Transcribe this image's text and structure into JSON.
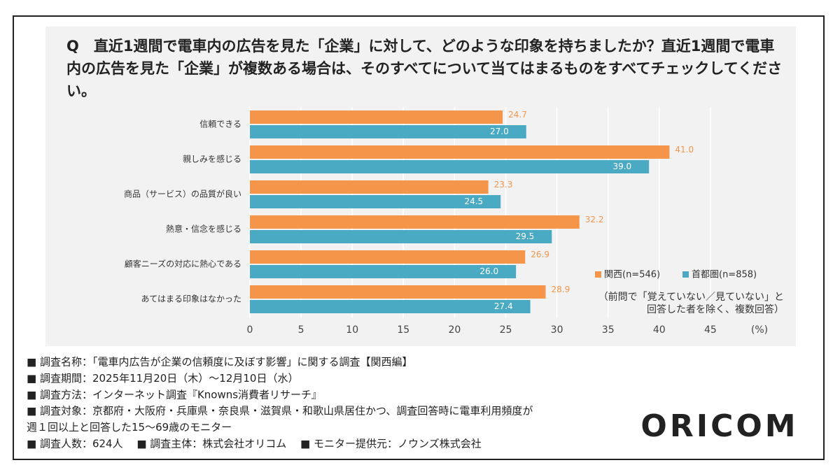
{
  "chart_data": {
    "type": "bar",
    "orientation": "horizontal",
    "title": "Q　直近1週間で電車内の広告を見た「企業」に対して、どのような印象を持ちましたか？直近1週間で電車内の広告を見た「企業」が複数ある場合は、そのすべてについて当てはまるものをすべてチェックしてください。",
    "categories": [
      "信頼できる",
      "親しみを感じる",
      "商品（サービス）の品質が良い",
      "熱意・信念を感じる",
      "顧客ニーズの対応に熱心である",
      "あてはまる印象はなかった"
    ],
    "series": [
      {
        "name": "関西(n=546)",
        "color": "#f5954a",
        "values": [
          24.7,
          41,
          23.3,
          32.2,
          26.9,
          28.9
        ],
        "value_labels": [
          "24.7",
          "41.0",
          "23.3",
          "32.2",
          "26.9",
          "28.9"
        ]
      },
      {
        "name": "首都圏(n=858)",
        "color": "#4aaac4",
        "values": [
          27,
          39,
          24.5,
          29.5,
          26,
          27.4
        ],
        "value_labels": [
          "27.0",
          "39.0",
          "24.5",
          "29.5",
          "26.0",
          "27.4"
        ]
      }
    ],
    "xlim": [
      0,
      50
    ],
    "xticks": [
      0,
      5,
      10,
      15,
      20,
      25,
      30,
      35,
      40,
      45
    ],
    "x_unit": "(%)",
    "grid": true,
    "note": [
      "（前問で「覚えていない／見ていない」と",
      "回答した者を除く、複数回答）"
    ]
  },
  "footer": [
    "■ 調査名称：「電車内広告が企業の信頼度に及ぼす影響」に関する調査【関西編】",
    "■ 調査期間：2025年11月20日（木）～12月10日（水）",
    "■ 調査方法：インターネット調査『Knowns消費者リサーチ』",
    "■ 調査対象：京都府・大阪府・兵庫県・奈良県・滋賀県・和歌山県居住かつ、調査回答時に電車利用頻度が",
    "週１回以上と回答した15～69歳のモニター",
    "■ 調査人数：624人　 ■ 調査主体：株式会社オリコム　 ■ モニター提供元：ノウンズ株式会社"
  ],
  "logo": "ORICOM"
}
